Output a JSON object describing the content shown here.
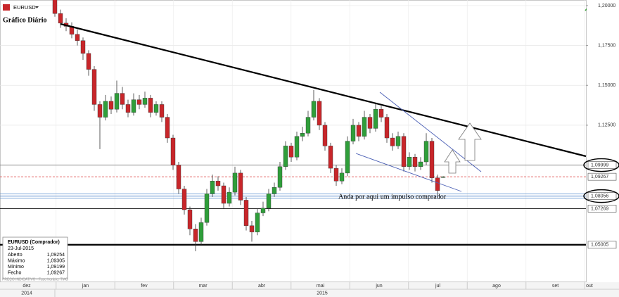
{
  "chart_data": {
    "type": "candlestick",
    "symbol": "EURUSD",
    "title": "Gráfico Diário",
    "months": [
      "dez",
      "jan",
      "fev",
      "mar",
      "abr",
      "mai",
      "jun",
      "jul",
      "ago",
      "set",
      "out"
    ],
    "years": [
      "2014",
      "2015"
    ],
    "up_color": "#2f9e3a",
    "down_color": "#c8262a",
    "open": [
      1.205,
      1.195,
      1.189,
      1.187,
      1.182,
      1.178,
      1.17,
      1.16,
      1.138,
      1.13,
      1.14,
      1.135,
      1.145,
      1.138,
      1.133,
      1.141,
      1.138,
      1.142,
      1.133,
      1.138,
      1.13,
      1.117,
      1.1,
      1.085,
      1.072,
      1.06,
      1.052,
      1.064,
      1.082,
      1.09,
      1.087,
      1.076,
      1.083,
      1.095,
      1.078,
      1.062,
      1.058,
      1.07,
      1.073,
      1.082,
      1.086,
      1.099,
      1.112,
      1.105,
      1.118,
      1.12,
      1.13,
      1.14,
      1.125,
      1.112,
      1.098,
      1.09,
      1.095,
      1.115,
      1.125,
      1.118,
      1.13,
      1.123,
      1.135,
      1.13,
      1.117,
      1.112,
      1.118,
      1.099,
      1.105,
      1.099,
      1.102,
      1.115,
      1.092,
      1.09254
    ],
    "high": [
      1.208,
      1.1975,
      1.192,
      1.1895,
      1.185,
      1.18,
      1.172,
      1.162,
      1.14,
      1.144,
      1.143,
      1.153,
      1.149,
      1.141,
      1.145,
      1.144,
      1.146,
      1.144,
      1.14,
      1.14,
      1.132,
      1.119,
      1.102,
      1.087,
      1.074,
      1.063,
      1.067,
      1.085,
      1.094,
      1.093,
      1.089,
      1.086,
      1.099,
      1.097,
      1.08,
      1.065,
      1.073,
      1.077,
      1.085,
      1.089,
      1.102,
      1.115,
      1.114,
      1.121,
      1.124,
      1.134,
      1.147,
      1.142,
      1.127,
      1.114,
      1.1,
      1.098,
      1.118,
      1.129,
      1.127,
      1.134,
      1.132,
      1.139,
      1.137,
      1.132,
      1.12,
      1.121,
      1.12,
      1.108,
      1.107,
      1.105,
      1.12,
      1.117,
      1.094,
      1.09305
    ],
    "low": [
      1.193,
      1.186,
      1.184,
      1.1795,
      1.175,
      1.166,
      1.156,
      1.134,
      1.11,
      1.128,
      1.132,
      1.133,
      1.135,
      1.13,
      1.131,
      1.135,
      1.136,
      1.13,
      1.131,
      1.127,
      1.114,
      1.097,
      1.082,
      1.069,
      1.056,
      1.046,
      1.05,
      1.062,
      1.08,
      1.084,
      1.073,
      1.074,
      1.081,
      1.075,
      1.059,
      1.052,
      1.056,
      1.068,
      1.071,
      1.08,
      1.084,
      1.097,
      1.102,
      1.103,
      1.115,
      1.118,
      1.128,
      1.122,
      1.109,
      1.095,
      1.087,
      1.088,
      1.093,
      1.113,
      1.115,
      1.116,
      1.12,
      1.121,
      1.127,
      1.114,
      1.109,
      1.11,
      1.096,
      1.097,
      1.096,
      1.097,
      1.1,
      1.089,
      1.081,
      1.09199
    ],
    "close": [
      1.195,
      1.189,
      1.187,
      1.182,
      1.178,
      1.17,
      1.16,
      1.138,
      1.13,
      1.14,
      1.135,
      1.145,
      1.138,
      1.133,
      1.141,
      1.138,
      1.142,
      1.133,
      1.138,
      1.13,
      1.117,
      1.1,
      1.085,
      1.072,
      1.06,
      1.052,
      1.064,
      1.082,
      1.09,
      1.087,
      1.076,
      1.083,
      1.095,
      1.078,
      1.062,
      1.058,
      1.07,
      1.073,
      1.082,
      1.086,
      1.099,
      1.112,
      1.105,
      1.118,
      1.12,
      1.13,
      1.14,
      1.125,
      1.112,
      1.098,
      1.09,
      1.095,
      1.115,
      1.125,
      1.118,
      1.13,
      1.123,
      1.135,
      1.13,
      1.117,
      1.112,
      1.118,
      1.099,
      1.105,
      1.099,
      1.102,
      1.115,
      1.092,
      1.084,
      1.09267
    ],
    "ylim": [
      1.027,
      1.2035
    ],
    "yticks": [
      {
        "value": 1.2,
        "label": "1,20000"
      },
      {
        "value": 1.175,
        "label": "1,17500"
      },
      {
        "value": 1.15,
        "label": "1,15000"
      },
      {
        "value": 1.125,
        "label": "1,12500"
      }
    ],
    "levels": [
      {
        "value": 1.09999,
        "label": "1,09999",
        "color": "#777777",
        "circled": true
      },
      {
        "value": 1.09267,
        "label": "1,09267",
        "color": "#e05050",
        "circled": false
      },
      {
        "value": 1.08056,
        "label": "1,08056",
        "color": "#5b8fd0",
        "circled": true
      },
      {
        "value": 1.07269,
        "label": "1,07269",
        "color": "#000000",
        "circled": false
      },
      {
        "value": 1.05005,
        "label": "1,05005",
        "color": "#000000",
        "circled": false
      }
    ],
    "annotation": "Anda por aqui um impulso comprador",
    "footer": "PREÇO INDICATIVO - Fuso horário: TMG",
    "info": {
      "title": "EURUSD (Comprador)",
      "date": "23-Jul-2015",
      "rows": [
        [
          "Aberto",
          "1,09254"
        ],
        [
          "Máximo",
          "1,09305"
        ],
        [
          "Mínimo",
          "1,09199"
        ],
        [
          "Fecho",
          "1,09267"
        ]
      ]
    }
  }
}
